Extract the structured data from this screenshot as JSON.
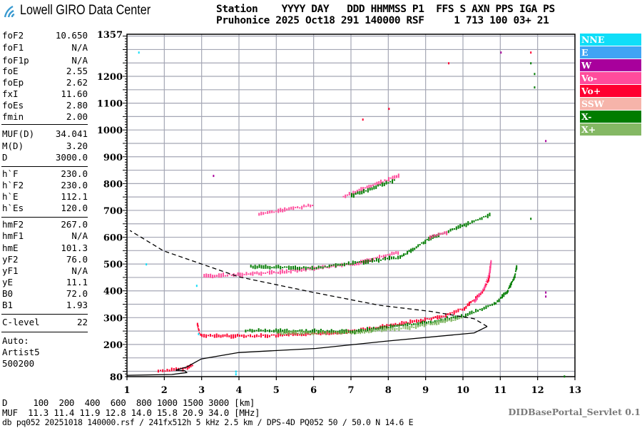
{
  "header": {
    "logo_text": "Lowell GIRO Data Center",
    "line1": "Station    YYYY DAY   DDD HHMMSS P1  FFS S AXN PPS IGA PS",
    "line2": "Pruhonice 2025 Oct18 291 140000 RSF     1 713 100 03+ 21"
  },
  "params": [
    {
      "k": "foF2",
      "v": "10.650"
    },
    {
      "k": "foF1",
      "v": "N/A"
    },
    {
      "k": "foF1p",
      "v": "N/A"
    },
    {
      "k": "foE",
      "v": "2.55"
    },
    {
      "k": "foEp",
      "v": "2.62"
    },
    {
      "k": "fxI",
      "v": "11.60"
    },
    {
      "k": "foEs",
      "v": "2.80"
    },
    {
      "k": "fmin",
      "v": "2.00"
    },
    {
      "k": "MUF(D)",
      "v": "34.041"
    },
    {
      "k": "M(D)",
      "v": "3.20"
    },
    {
      "k": "D",
      "v": "3000.0"
    },
    {
      "k": "h`F",
      "v": "230.0"
    },
    {
      "k": "h`F2",
      "v": "230.0"
    },
    {
      "k": "h`E",
      "v": "112.1"
    },
    {
      "k": "h`Es",
      "v": "120.0"
    },
    {
      "k": "hmF2",
      "v": "267.0"
    },
    {
      "k": "hmF1",
      "v": "N/A"
    },
    {
      "k": "hmE",
      "v": "101.3"
    },
    {
      "k": "yF2",
      "v": "76.0"
    },
    {
      "k": "yF1",
      "v": "N/A"
    },
    {
      "k": "yE",
      "v": "11.1"
    },
    {
      "k": "B0",
      "v": "72.0"
    },
    {
      "k": "B1",
      "v": "1.93"
    },
    {
      "k": "C-level",
      "v": "22"
    }
  ],
  "autoscaling": [
    "Auto:",
    "Artist5",
    "500200"
  ],
  "bottom": {
    "d_row": "D     100  200  400  600  800 1000 1500 3000 [km]",
    "muf_row": "MUF  11.3 11.4 11.9 12.8 14.0 15.8 20.9 34.0 [MHz]",
    "file_row": "db pq052 20251018 140000.rsf / 241fx512h 5 kHz 2.5 km / DPS-4D PQ052 50 / 50.0 N 14.6 E",
    "servlet": "DIDBasePortal_Servlet 0.1"
  },
  "legend": [
    {
      "label": "NNE",
      "color": "#10def8"
    },
    {
      "label": "E",
      "color": "#40a4f4"
    },
    {
      "label": "W",
      "color": "#a8009c"
    },
    {
      "label": "Vo-",
      "color": "#ff4c9c"
    },
    {
      "label": "Vo+",
      "color": "#ff0030"
    },
    {
      "label": "SSW",
      "color": "#f6b4aa"
    },
    {
      "label": "X-",
      "color": "#007c00"
    },
    {
      "label": "X+",
      "color": "#84b864"
    }
  ],
  "chart_data": {
    "type": "scatter",
    "xlabel": "",
    "ylabel": "",
    "xlim": [
      1,
      13
    ],
    "ylim": [
      80,
      1357
    ],
    "xticks": [
      "1",
      "2",
      "3",
      "4",
      "5",
      "6",
      "7",
      "8",
      "9",
      "10",
      "11",
      "12",
      "13"
    ],
    "yticks": [
      "1357",
      "1200",
      "1100",
      "1000",
      "900",
      "800",
      "700",
      "600",
      "500",
      "400",
      "300",
      "200",
      "80"
    ],
    "grid": true,
    "legend_position": "right",
    "traces": [
      {
        "pol": "Vo+",
        "points": [
          [
            1.82,
            101
          ],
          [
            2.3,
            106
          ],
          [
            2.6,
            112
          ],
          [
            2.78,
            128
          ]
        ]
      },
      {
        "pol": "Vo+",
        "points": [
          [
            2.87,
            274
          ],
          [
            2.92,
            245
          ],
          [
            2.99,
            232
          ],
          [
            4.0,
            232
          ],
          [
            5.03,
            233
          ],
          [
            6.0,
            240
          ],
          [
            7.08,
            250
          ],
          [
            8.46,
            280
          ],
          [
            9.47,
            306
          ],
          [
            10.02,
            335
          ],
          [
            10.5,
            394
          ],
          [
            10.67,
            439
          ],
          [
            10.73,
            508
          ]
        ]
      },
      {
        "pol": "Vo-",
        "points": [
          [
            10.3,
            360
          ],
          [
            10.55,
            410
          ],
          [
            10.7,
            470
          ],
          [
            10.74,
            515
          ]
        ]
      },
      {
        "pol": "X-",
        "points": [
          [
            4.16,
            252
          ],
          [
            5.5,
            250
          ],
          [
            7.08,
            248
          ],
          [
            7.76,
            261
          ],
          [
            9.12,
            283
          ],
          [
            10.0,
            306
          ],
          [
            10.82,
            350
          ],
          [
            11.16,
            394
          ],
          [
            11.37,
            456
          ],
          [
            11.43,
            496
          ]
        ]
      },
      {
        "pol": "X+",
        "points": [
          [
            5.0,
            243
          ],
          [
            7.0,
            244
          ],
          [
            8.5,
            262
          ],
          [
            10.0,
            300
          ]
        ]
      },
      {
        "pol": "Vo-",
        "points": [
          [
            3.05,
            454
          ],
          [
            5.03,
            469
          ],
          [
            7.08,
            500
          ],
          [
            8.3,
            545
          ]
        ]
      },
      {
        "pol": "X-",
        "points": [
          [
            4.3,
            490
          ],
          [
            6.0,
            485
          ],
          [
            8.3,
            525
          ],
          [
            9.07,
            593
          ],
          [
            10.75,
            686
          ]
        ]
      },
      {
        "pol": "Vo-",
        "points": [
          [
            9.1,
            600
          ],
          [
            9.6,
            620
          ]
        ]
      },
      {
        "pol": "Vo-",
        "points": [
          [
            4.52,
            686
          ],
          [
            6.01,
            721
          ]
        ]
      },
      {
        "pol": "Vo-",
        "points": [
          [
            6.78,
            752
          ],
          [
            8.31,
            832
          ]
        ]
      },
      {
        "pol": "X-",
        "points": [
          [
            7.0,
            755
          ],
          [
            8.2,
            815
          ]
        ]
      }
    ],
    "scattered": [
      {
        "pol": "NNE",
        "points": [
          [
            1.3,
            1290
          ],
          [
            3.9,
            90
          ],
          [
            3.9,
            100
          ],
          [
            2.9,
            240
          ],
          [
            2.85,
            420
          ],
          [
            1.5,
            500
          ]
        ]
      },
      {
        "pol": "W",
        "points": [
          [
            12.2,
            380
          ],
          [
            12.2,
            395
          ],
          [
            12.2,
            960
          ],
          [
            11.0,
            1290
          ],
          [
            3.3,
            830
          ]
        ]
      },
      {
        "pol": "Vo+",
        "points": [
          [
            9.6,
            1250
          ],
          [
            11.8,
            1290
          ],
          [
            7.3,
            1040
          ],
          [
            8.0,
            1080
          ],
          [
            9.3,
            300
          ]
        ]
      },
      {
        "pol": "X-",
        "points": [
          [
            11.9,
            1210
          ],
          [
            11.9,
            1160
          ],
          [
            11.8,
            1250
          ],
          [
            11.8,
            670
          ],
          [
            12.7,
            82
          ]
        ]
      }
    ],
    "profile": {
      "solid": [
        [
          1.0,
          85
        ],
        [
          2.2,
          88
        ],
        [
          2.6,
          95
        ],
        [
          2.55,
          102
        ],
        [
          2.3,
          104
        ],
        [
          2.6,
          116
        ],
        [
          2.99,
          146
        ],
        [
          4.0,
          170
        ],
        [
          6.06,
          185
        ],
        [
          7.92,
          212
        ],
        [
          10.3,
          243
        ],
        [
          10.65,
          267
        ]
      ],
      "dashed": [
        [
          10.65,
          267
        ],
        [
          10.3,
          296
        ],
        [
          9.15,
          323
        ],
        [
          7.77,
          346
        ],
        [
          6.0,
          394
        ],
        [
          4.0,
          452
        ],
        [
          1.98,
          549
        ],
        [
          1.08,
          625
        ]
      ]
    }
  }
}
